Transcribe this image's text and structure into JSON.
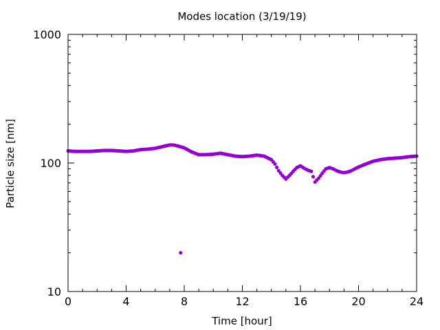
{
  "chart_data": {
    "type": "scatter",
    "title": "Modes location (3/19/19)",
    "xlabel": "Time [hour]",
    "ylabel": "Particle size [nm]",
    "xlim": [
      0,
      24
    ],
    "ylim": [
      10,
      1000
    ],
    "yscale": "log",
    "grid": false,
    "legend": "none",
    "xticks": [
      "0",
      "4",
      "8",
      "12",
      "16",
      "20",
      "24"
    ],
    "yticks": [
      "10",
      "100",
      "1000"
    ],
    "marker_color": "#9400d3",
    "series": [
      {
        "x": [
          0.0,
          0.5,
          1.0,
          1.5,
          2.0,
          2.5,
          3.0,
          3.5,
          4.0,
          4.5,
          5.0,
          5.5,
          6.0,
          6.5,
          7.0,
          7.25,
          7.5,
          8.0,
          8.5,
          9.0,
          9.5,
          10.0,
          10.5,
          11.0,
          11.5,
          12.0,
          12.5,
          13.0,
          13.5,
          14.0,
          14.25,
          14.5,
          14.75,
          15.0,
          15.25,
          15.5,
          15.75,
          16.0,
          16.25,
          16.5,
          16.75,
          17.0,
          17.25,
          17.5,
          17.75,
          18.0,
          18.25,
          18.5,
          18.75,
          19.0,
          19.25,
          19.5,
          19.75,
          20.0,
          20.5,
          21.0,
          21.5,
          22.0,
          22.5,
          23.0,
          23.5,
          24.0,
          7.75
        ],
        "y": [
          124,
          123,
          123,
          123,
          124,
          125,
          125,
          124,
          123,
          124,
          127,
          128,
          130,
          134,
          138,
          138,
          136,
          131,
          122,
          116,
          116,
          117,
          119,
          116,
          113,
          112,
          113,
          115,
          113,
          106,
          98,
          87,
          80,
          75,
          80,
          86,
          92,
          95,
          91,
          88,
          86,
          71,
          76,
          83,
          90,
          92,
          90,
          87,
          85,
          84,
          85,
          87,
          90,
          93,
          98,
          103,
          106,
          108,
          109,
          110,
          112,
          113,
          20
        ]
      }
    ]
  }
}
